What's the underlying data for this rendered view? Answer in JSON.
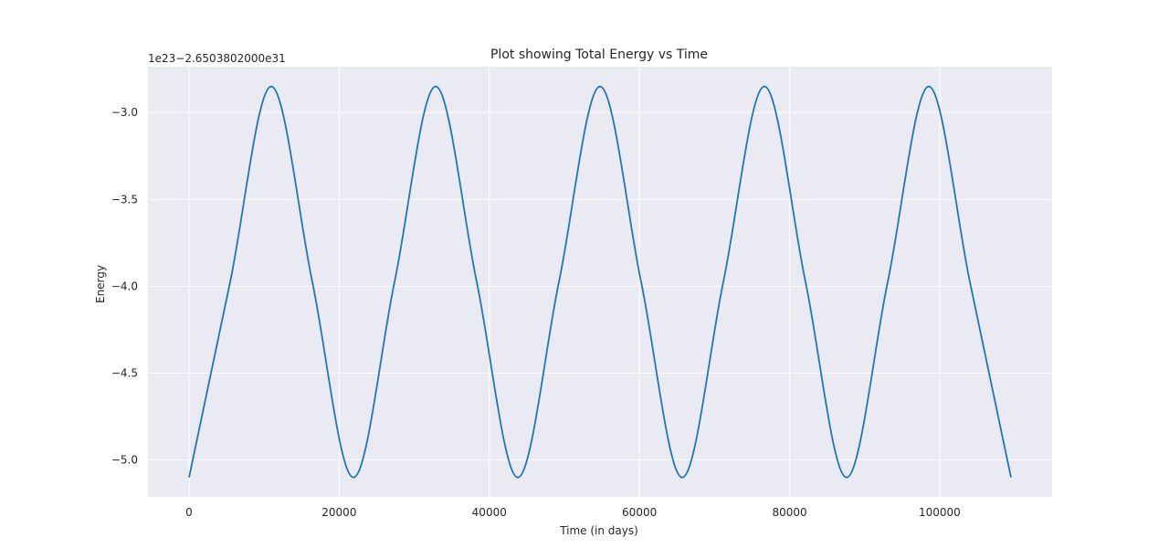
{
  "chart_data": {
    "type": "line",
    "title": "Plot showing Total Energy vs Time",
    "xlabel": "Time (in days)",
    "ylabel": "Energy",
    "offset_text": "1e23−2.6503802000e31",
    "xlim": [
      -5475,
      114975
    ],
    "ylim": [
      -5.212,
      -2.736
    ],
    "x_ticks": [
      0,
      20000,
      40000,
      60000,
      80000,
      100000
    ],
    "x_tick_labels": [
      "0",
      "20000",
      "40000",
      "60000",
      "80000",
      "100000"
    ],
    "y_ticks": [
      -3.0,
      -3.5,
      -4.0,
      -4.5,
      -5.0
    ],
    "y_tick_labels": [
      "−3.0",
      "−3.5",
      "−4.0",
      "−4.5",
      "−5.0"
    ],
    "grid": true,
    "line_color": "#1f77b4",
    "background_color": "#eaeaf2",
    "series": [
      {
        "x": [
          0,
          5475,
          10950,
          16425,
          21900,
          27375,
          32850,
          38325,
          43800,
          49275,
          54750,
          60225,
          65700,
          71175,
          76650,
          82125,
          87600,
          93075,
          98550,
          104025,
          109500
        ],
        "values": [
          -5.1,
          -3.975,
          -2.85,
          -3.975,
          -5.1,
          -3.975,
          -2.85,
          -3.975,
          -5.1,
          -3.975,
          -2.85,
          -3.975,
          -5.1,
          -3.975,
          -2.85,
          -3.975,
          -5.1,
          -3.975,
          -2.85,
          -3.975,
          -5.1
        ]
      }
    ]
  }
}
